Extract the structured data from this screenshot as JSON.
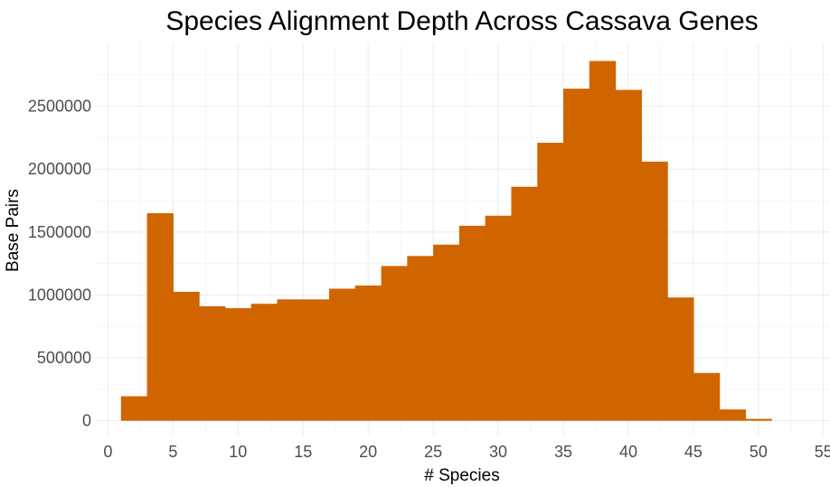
{
  "chart_data": {
    "type": "bar",
    "title": "Species Alignment Depth Across Cassava Genes",
    "xlabel": "# Species",
    "ylabel": "Base Pairs",
    "bin_width": 2,
    "bins": [
      {
        "x_start": 1,
        "x_end": 3,
        "value": 195000
      },
      {
        "x_start": 3,
        "x_end": 5,
        "value": 1650000
      },
      {
        "x_start": 5,
        "x_end": 7,
        "value": 1025000
      },
      {
        "x_start": 7,
        "x_end": 9,
        "value": 910000
      },
      {
        "x_start": 9,
        "x_end": 11,
        "value": 895000
      },
      {
        "x_start": 11,
        "x_end": 13,
        "value": 930000
      },
      {
        "x_start": 13,
        "x_end": 15,
        "value": 965000
      },
      {
        "x_start": 15,
        "x_end": 17,
        "value": 965000
      },
      {
        "x_start": 17,
        "x_end": 19,
        "value": 1050000
      },
      {
        "x_start": 19,
        "x_end": 21,
        "value": 1075000
      },
      {
        "x_start": 21,
        "x_end": 23,
        "value": 1230000
      },
      {
        "x_start": 23,
        "x_end": 25,
        "value": 1310000
      },
      {
        "x_start": 25,
        "x_end": 27,
        "value": 1400000
      },
      {
        "x_start": 27,
        "x_end": 29,
        "value": 1550000
      },
      {
        "x_start": 29,
        "x_end": 31,
        "value": 1630000
      },
      {
        "x_start": 31,
        "x_end": 33,
        "value": 1860000
      },
      {
        "x_start": 33,
        "x_end": 35,
        "value": 2210000
      },
      {
        "x_start": 35,
        "x_end": 37,
        "value": 2640000
      },
      {
        "x_start": 37,
        "x_end": 39,
        "value": 2860000
      },
      {
        "x_start": 39,
        "x_end": 41,
        "value": 2630000
      },
      {
        "x_start": 41,
        "x_end": 43,
        "value": 2060000
      },
      {
        "x_start": 43,
        "x_end": 45,
        "value": 980000
      },
      {
        "x_start": 45,
        "x_end": 47,
        "value": 380000
      },
      {
        "x_start": 47,
        "x_end": 49,
        "value": 90000
      },
      {
        "x_start": 49,
        "x_end": 51,
        "value": 15000
      }
    ],
    "x_ticks": [
      "0",
      "5",
      "10",
      "15",
      "20",
      "25",
      "30",
      "35",
      "40",
      "45",
      "50",
      "55"
    ],
    "y_ticks": [
      "0",
      "500000",
      "1000000",
      "1500000",
      "2000000",
      "2500000"
    ],
    "xlim": [
      -1,
      55.5
    ],
    "ylim": [
      -110000,
      3000000
    ],
    "bar_color": "#D06500",
    "grid": true,
    "legend": "none"
  }
}
